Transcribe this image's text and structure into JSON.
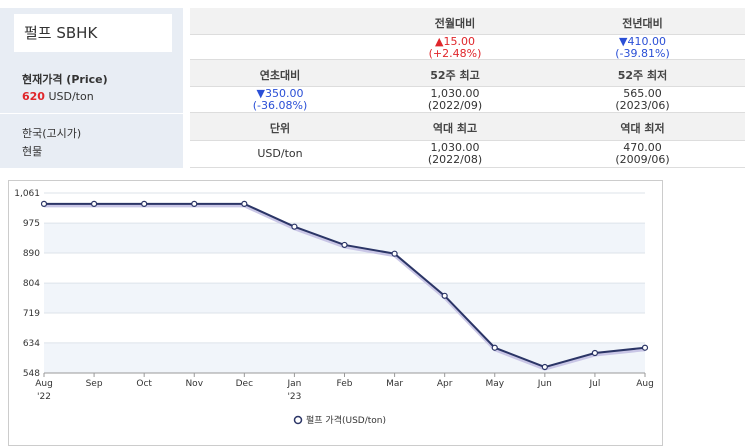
{
  "panel": {
    "title": "펄프 SBHK",
    "price_label": "현재가격 (Price)",
    "price": "620",
    "unit": "USD/ton",
    "market_label": "한국(고시가)",
    "market": "현물"
  },
  "table": {
    "headers": [
      [
        "전월대비",
        "전년대비"
      ],
      [
        "연초대비",
        "52주 최고",
        "52주 최저"
      ],
      [
        "단위",
        "역대 최고",
        "역대 최저"
      ]
    ],
    "rows": [
      [
        {
          "main": "▲15.00",
          "sub": "(+2.48%)"
        },
        {
          "main": "▼410.00",
          "sub": "(-39.81%)"
        }
      ],
      [
        {
          "main": "▼350.00",
          "sub": "(-36.08%)"
        },
        {
          "main": "1,030.00",
          "sub": "(2022/09)"
        },
        {
          "main": "565.00",
          "sub": "(2023/06)"
        }
      ],
      [
        {
          "main": "USD/ton"
        },
        {
          "main": "1,030.00",
          "sub": "(2022/08)"
        },
        {
          "main": "470.00",
          "sub": "(2009/06)"
        }
      ]
    ]
  },
  "chart_data": {
    "type": "line",
    "categories": [
      "Aug",
      "Sep",
      "Oct",
      "Nov",
      "Dec",
      "Jan",
      "Feb",
      "Mar",
      "Apr",
      "May",
      "Jun",
      "Jul",
      "Aug"
    ],
    "category_years": [
      "'22",
      null,
      null,
      null,
      null,
      "'23",
      null,
      null,
      null,
      null,
      null,
      null,
      null
    ],
    "series": [
      {
        "name": "펄프 가격(USD/ton)",
        "color": "#2b3566",
        "values": [
          1030,
          1030,
          1030,
          1030,
          1030,
          965,
          913,
          888,
          768,
          620,
          565,
          605,
          620
        ]
      }
    ],
    "ylim": [
      548,
      1061
    ],
    "yticks": [
      548,
      634,
      719,
      804,
      890,
      975,
      {
        "value": 1061,
        "label": "1,061"
      }
    ],
    "grid": true,
    "legend": "bottom"
  }
}
